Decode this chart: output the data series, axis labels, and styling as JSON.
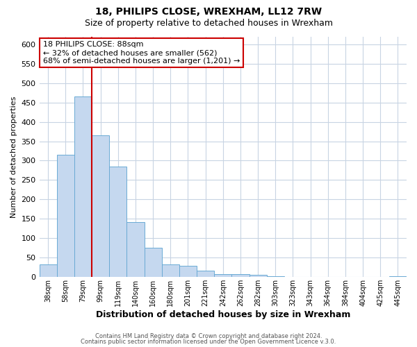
{
  "title": "18, PHILIPS CLOSE, WREXHAM, LL12 7RW",
  "subtitle": "Size of property relative to detached houses in Wrexham",
  "xlabel": "Distribution of detached houses by size in Wrexham",
  "ylabel": "Number of detached properties",
  "bar_labels": [
    "38sqm",
    "58sqm",
    "79sqm",
    "99sqm",
    "119sqm",
    "140sqm",
    "160sqm",
    "180sqm",
    "201sqm",
    "221sqm",
    "242sqm",
    "262sqm",
    "282sqm",
    "303sqm",
    "323sqm",
    "343sqm",
    "364sqm",
    "384sqm",
    "404sqm",
    "425sqm",
    "445sqm"
  ],
  "bar_values": [
    32,
    315,
    465,
    365,
    285,
    142,
    75,
    32,
    29,
    16,
    8,
    8,
    5,
    2,
    1,
    0,
    0,
    0,
    0,
    0,
    2
  ],
  "bar_color": "#c5d8ef",
  "bar_edge_color": "#6aaad4",
  "grid_color": "#c8d4e3",
  "background_color": "#ffffff",
  "figure_color": "#ffffff",
  "vline_color": "#cc0000",
  "vline_x_index": 2.5,
  "annotation_title": "18 PHILIPS CLOSE: 88sqm",
  "annotation_line1": "← 32% of detached houses are smaller (562)",
  "annotation_line2": "68% of semi-detached houses are larger (1,201) →",
  "annotation_box_color": "#ffffff",
  "annotation_box_edge": "#cc0000",
  "ylim": [
    0,
    620
  ],
  "yticks": [
    0,
    50,
    100,
    150,
    200,
    250,
    300,
    350,
    400,
    450,
    500,
    550,
    600
  ],
  "footer1": "Contains HM Land Registry data © Crown copyright and database right 2024.",
  "footer2": "Contains public sector information licensed under the Open Government Licence v.3.0."
}
